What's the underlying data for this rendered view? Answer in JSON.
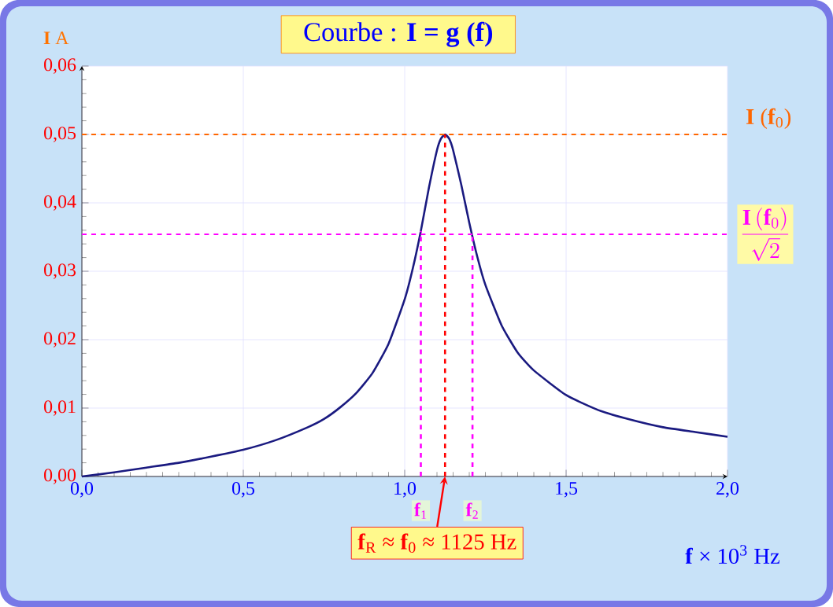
{
  "chart_data": {
    "type": "line",
    "title": "Courbe : **I = g (f)**",
    "xlabel": "**f** × 10$^{3}$ Hz",
    "ylabel": "**I**  A",
    "x": [
      0,
      0.1,
      0.2,
      0.3,
      0.4,
      0.5,
      0.6,
      0.7,
      0.75,
      0.8,
      0.85,
      0.9,
      0.95,
      1.0,
      1.025,
      1.05,
      1.075,
      1.1,
      1.1125,
      1.125,
      1.1375,
      1.15,
      1.175,
      1.2,
      1.225,
      1.25,
      1.3,
      1.35,
      1.4,
      1.5,
      1.6,
      1.7,
      1.8,
      1.9,
      2.0
    ],
    "series": [
      {
        "color": "#1a1a80",
        "values": [
          0,
          0.0006,
          0.0013,
          0.002,
          0.0029,
          0.0039,
          0.0053,
          0.0072,
          0.0084,
          0.0101,
          0.0122,
          0.0151,
          0.0194,
          0.0259,
          0.0304,
          0.0359,
          0.0422,
          0.0477,
          0.0494,
          0.05,
          0.0494,
          0.0477,
          0.0427,
          0.0371,
          0.0321,
          0.028,
          0.0221,
          0.0181,
          0.0155,
          0.0119,
          0.0097,
          0.0083,
          0.0072,
          0.0065,
          0.0058
        ]
      }
    ],
    "xlim": [
      0,
      2
    ],
    "ylim": [
      0,
      0.06
    ],
    "xticks": [
      {
        "value": 0,
        "label": "0,0"
      },
      {
        "value": 0.5,
        "label": "0,5"
      },
      {
        "value": 1.0,
        "label": "1,0"
      },
      {
        "value": 1.5,
        "label": "1,5"
      },
      {
        "value": 2.0,
        "label": "2,0"
      }
    ],
    "yticks": [
      {
        "value": 0,
        "label": "0,00"
      },
      {
        "value": 0.01,
        "label": "0,01"
      },
      {
        "value": 0.02,
        "label": "0,02"
      },
      {
        "value": 0.03,
        "label": "0,03"
      },
      {
        "value": 0.04,
        "label": "0,04"
      },
      {
        "value": 0.05,
        "label": "0,05"
      },
      {
        "value": 0.06,
        "label": "0,06"
      }
    ],
    "grid": true,
    "ref_lines": [
      {
        "axis": "y",
        "value": 0.05,
        "label": "**I** (**f**$_{0}$)",
        "color": "#ff6600",
        "line_style": "dashed"
      },
      {
        "axis": "y",
        "value": 0.0354,
        "label": "\\frac{\\mathbf{I}\\left(\\mathbf{f}_0\\right)}{\\sqrt{2}}",
        "color": "#ff00ff",
        "line_style": "dashed"
      },
      {
        "axis": "x",
        "value": 1.05,
        "label": "**f**$_{1}$",
        "color": "#ff00ff",
        "line_style": "dashed"
      },
      {
        "axis": "x",
        "value": 1.21,
        "label": "**f**$_{2}$",
        "color": "#ff00ff",
        "line_style": "dashed"
      },
      {
        "axis": "x",
        "value": 1.125,
        "color": "#ff0000",
        "line_style": "dashed"
      }
    ],
    "annotations": [
      {
        "text": "**f**$_{R}$ ≈ **f**$_{0}$ ≈ 1125 Hz",
        "x": 1.125,
        "y": 0
      }
    ]
  }
}
